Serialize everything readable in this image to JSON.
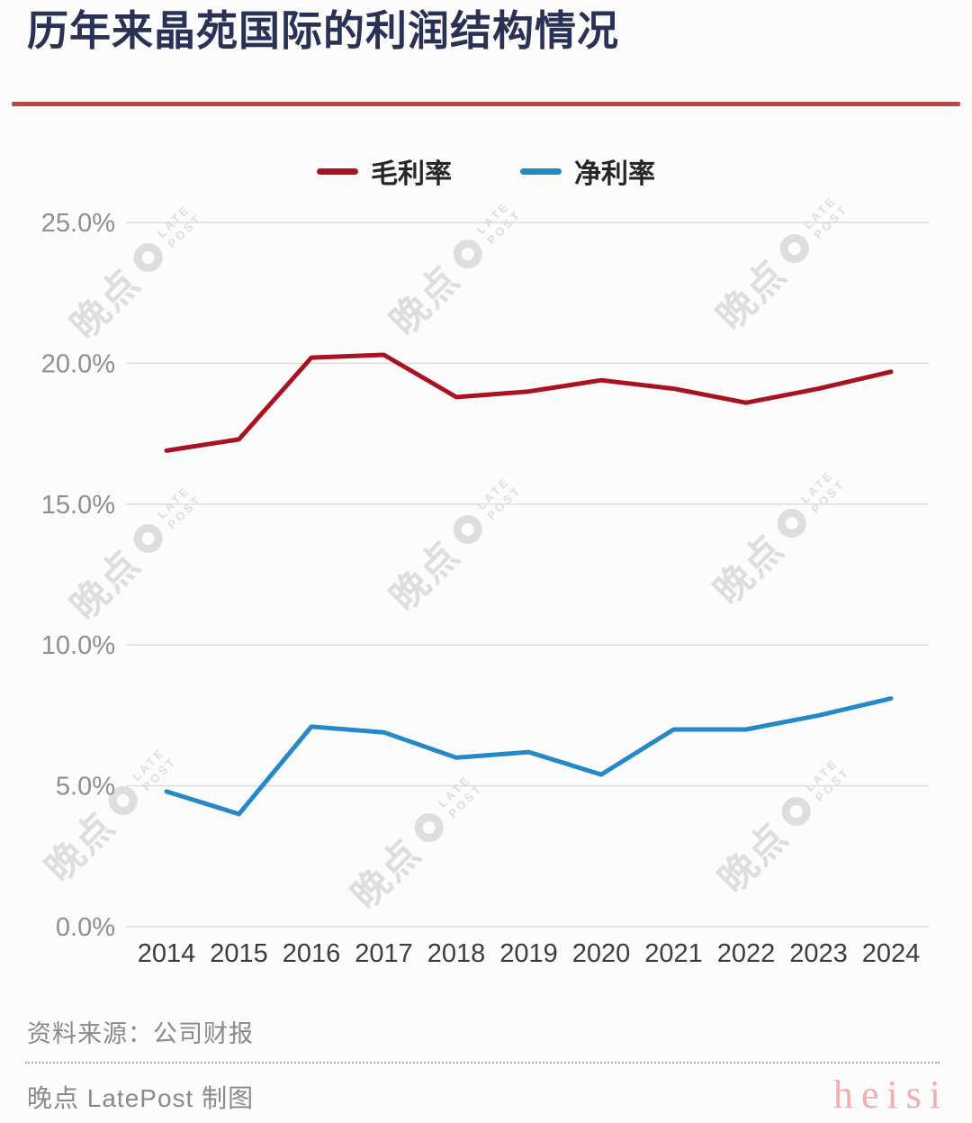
{
  "header": {
    "title": "历年来晶苑国际的利润结构情况"
  },
  "legend": {
    "items": [
      {
        "label": "毛利率",
        "color": "#AB1220"
      },
      {
        "label": "净利率",
        "color": "#2389C9"
      }
    ]
  },
  "chart_data": {
    "type": "line",
    "title": "历年来晶苑国际的利润结构情况",
    "categories": [
      "2014",
      "2015",
      "2016",
      "2017",
      "2018",
      "2019",
      "2020",
      "2021",
      "2022",
      "2023",
      "2024"
    ],
    "series": [
      {
        "name": "毛利率",
        "color": "#AB1220",
        "values": [
          16.9,
          17.3,
          20.2,
          20.3,
          18.8,
          19.0,
          19.4,
          19.1,
          18.6,
          19.1,
          19.7
        ]
      },
      {
        "name": "净利率",
        "color": "#2389C9",
        "values": [
          4.8,
          4.0,
          7.1,
          6.9,
          6.0,
          6.2,
          5.4,
          7.0,
          7.0,
          7.5,
          8.1
        ]
      }
    ],
    "unit": "%",
    "ylim": [
      0,
      25
    ],
    "yticks": [
      {
        "value": 25,
        "label": "25.0%"
      },
      {
        "value": 20,
        "label": "20.0%"
      },
      {
        "value": 15,
        "label": "15.0%"
      },
      {
        "value": 10,
        "label": "10.0%"
      },
      {
        "value": 5,
        "label": "5.0%"
      },
      {
        "value": 0,
        "label": "0.0%"
      }
    ],
    "grid": "horizontal",
    "legend_position": "top-center"
  },
  "watermark": {
    "cn": "晚点",
    "en_line1": "LATE",
    "en_line2": "POST"
  },
  "footer": {
    "source": "资料来源：公司财报",
    "credit": "晚点 LatePost 制图",
    "site_watermark": "heisi"
  },
  "colors": {
    "accent_red": "#C4423B",
    "line_red": "#AB1220",
    "line_blue": "#2389C9",
    "title_navy": "#2A3156"
  }
}
